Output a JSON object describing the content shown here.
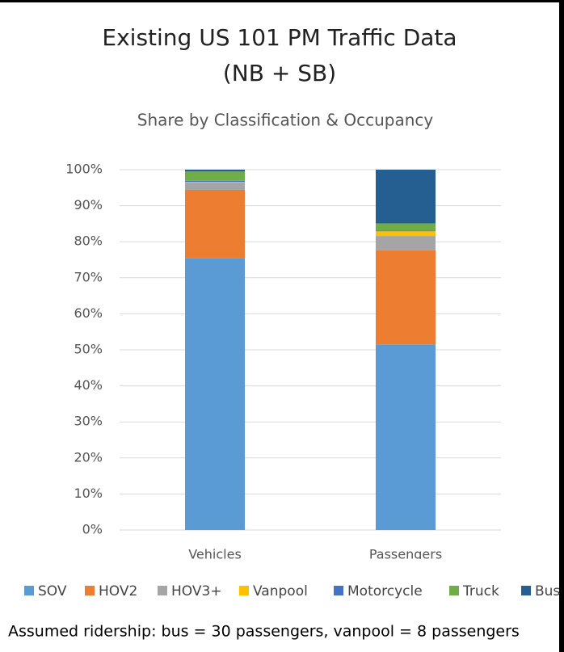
{
  "chart_data": {
    "type": "stacked_bar",
    "title": [
      "Existing US 101 PM Traffic Data",
      "(NB + SB)"
    ],
    "subtitle": "Share by Classification & Occupancy",
    "categories": [
      "Vehicles",
      "Passengers"
    ],
    "series": [
      {
        "name": "SOV",
        "color": "#5b9bd5",
        "values": [
          75.5,
          51.5
        ]
      },
      {
        "name": "HOV2",
        "color": "#ed7d31",
        "values": [
          18.9,
          26.1
        ]
      },
      {
        "name": "HOV3+",
        "color": "#a5a5a5",
        "values": [
          2.0,
          4.0
        ]
      },
      {
        "name": "Vanpool",
        "color": "#ffc000",
        "values": [
          0.2,
          1.3
        ]
      },
      {
        "name": "Motorcycle",
        "color": "#4472c4",
        "values": [
          0.3,
          0.2
        ]
      },
      {
        "name": "Truck",
        "color": "#70ad47",
        "values": [
          2.6,
          2.0
        ]
      },
      {
        "name": "Bus",
        "color": "#255e91",
        "values": [
          0.5,
          14.9
        ]
      }
    ],
    "ylim": [
      0,
      100
    ],
    "yticks": [
      {
        "value": 0,
        "label": "0%"
      },
      {
        "value": 10,
        "label": "10%"
      },
      {
        "value": 20,
        "label": "20%"
      },
      {
        "value": 30,
        "label": "30%"
      },
      {
        "value": 40,
        "label": "40%"
      },
      {
        "value": 50,
        "label": "50%"
      },
      {
        "value": 60,
        "label": "60%"
      },
      {
        "value": 70,
        "label": "70%"
      },
      {
        "value": 80,
        "label": "80%"
      },
      {
        "value": 90,
        "label": "90%"
      },
      {
        "value": 100,
        "label": "100%"
      }
    ],
    "grid": true,
    "legend": "bottom",
    "annotation": "Assumed ridership: bus = 30 passengers, vanpool = 8 passengers"
  }
}
